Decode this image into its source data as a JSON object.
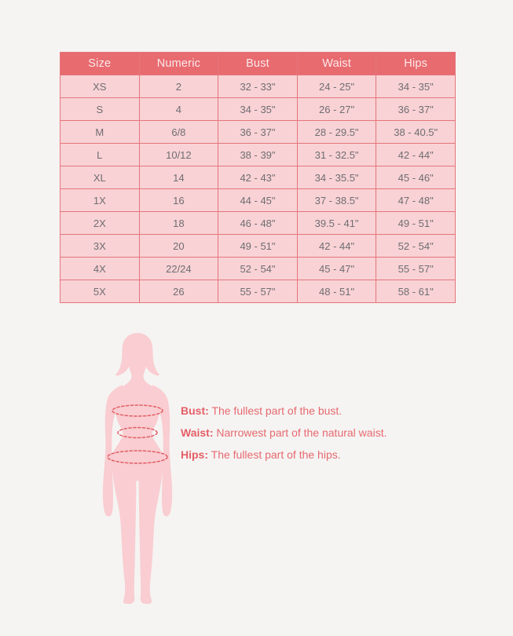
{
  "page": {
    "background_color": "#F5F4F3"
  },
  "table": {
    "columns": [
      "Size",
      "Numeric",
      "Bust",
      "Waist",
      "Hips"
    ],
    "rows": [
      [
        "XS",
        "2",
        "32 - 33\"",
        "24 - 25\"",
        "34 - 35\""
      ],
      [
        "S",
        "4",
        "34 - 35\"",
        "26 - 27\"",
        "36 - 37\""
      ],
      [
        "M",
        "6/8",
        "36 - 37\"",
        "28 - 29.5\"",
        "38 - 40.5\""
      ],
      [
        "L",
        "10/12",
        "38 - 39\"",
        "31 - 32.5\"",
        "42 - 44\""
      ],
      [
        "XL",
        "14",
        "42 - 43\"",
        "34 - 35.5\"",
        "45 - 46\""
      ],
      [
        "1X",
        "16",
        "44 - 45\"",
        "37 - 38.5\"",
        "47 - 48\""
      ],
      [
        "2X",
        "18",
        "46 - 48\"",
        "39.5 - 41\"",
        "49 - 51\""
      ],
      [
        "3X",
        "20",
        "49 - 51\"",
        "42 - 44\"",
        "52 - 54\""
      ],
      [
        "4X",
        "22/24",
        "52 - 54\"",
        "45 - 47\"",
        "55 - 57\""
      ],
      [
        "5X",
        "26",
        "55 - 57\"",
        "48 - 51\"",
        "58 - 61\""
      ]
    ],
    "colors": {
      "header_background": "#E86B70",
      "header_text": "#FBE9E9",
      "row_background": "#F9D2D5",
      "cell_border": "#E3767C",
      "cell_text": "#6E6E72"
    }
  },
  "legend": {
    "items": [
      {
        "label": "Bust:",
        "text": "The fullest part of the bust."
      },
      {
        "label": "Waist:",
        "text": "Narrowest part of the natural waist."
      },
      {
        "label": "Hips:",
        "text": "The fullest part of the hips."
      }
    ],
    "text_color": "#E7696F"
  },
  "figure": {
    "name": "female-body-silhouette",
    "silhouette_color": "#F9CDD1",
    "measurement_line_color": "#E15F66",
    "measurement_lines": [
      "bust",
      "waist",
      "hips"
    ]
  }
}
